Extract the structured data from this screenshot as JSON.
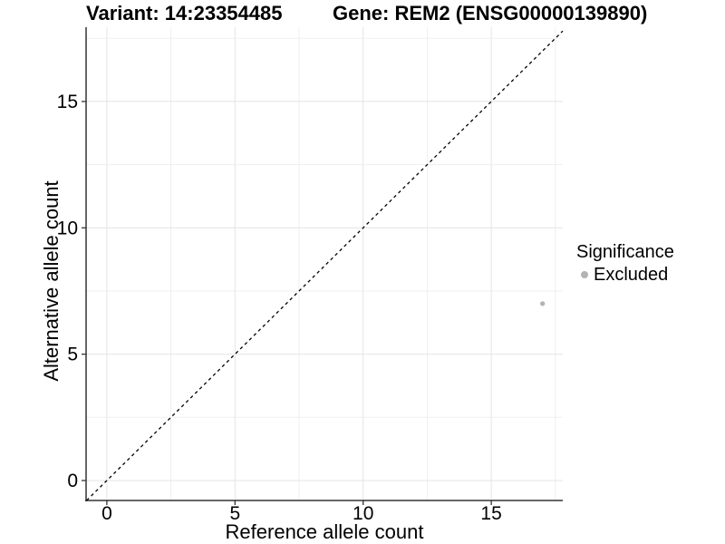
{
  "chart_data": {
    "type": "scatter",
    "titles": {
      "variant": "Variant: 14:23354485",
      "gene": "Gene: REM2 (ENSG00000139890)"
    },
    "xlabel": "Reference allele count",
    "ylabel": "Alternative allele count",
    "xlim": [
      -0.81,
      17.79
    ],
    "ylim": [
      -0.79,
      17.94
    ],
    "x_ticks": [
      0,
      5,
      10,
      15
    ],
    "y_ticks": [
      0,
      5,
      10,
      15
    ],
    "minor_break_step": 2.5,
    "grid": true,
    "identity_line": {
      "slope": 1,
      "intercept": 0,
      "style": "dashed",
      "color": "#000000"
    },
    "series": [
      {
        "name": "Excluded",
        "color": "#b3b3b3",
        "point_radius": 2.6,
        "points": [
          {
            "x": 17,
            "y": 7
          }
        ]
      }
    ],
    "legend": {
      "title": "Significance",
      "position": "right",
      "items": [
        {
          "label": "Excluded",
          "color": "#b3b3b3"
        }
      ]
    },
    "style": {
      "grid_major": "#e4e4e4",
      "grid_minor": "#efefef",
      "axis_line": "#333333",
      "tick_color": "#333333",
      "text_color": "#000000",
      "background": "#ffffff"
    }
  }
}
